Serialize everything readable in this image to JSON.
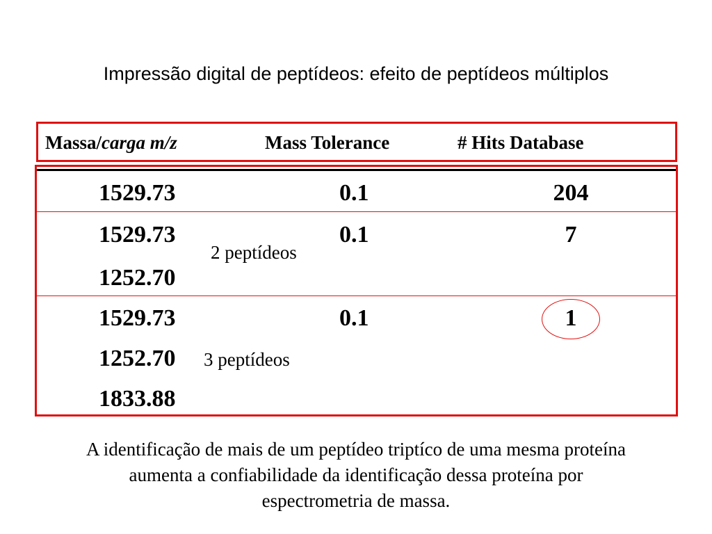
{
  "title": "Impressão digital de peptídeos: efeito de peptídeos múltiplos",
  "header": {
    "massa": "Massa/",
    "carga": "carga m/z",
    "tolerance": "Mass Tolerance",
    "hits": "# Hits Database"
  },
  "rows": [
    {
      "masses": [
        "1529.73"
      ],
      "tolerance": "0.1",
      "hits": "204",
      "note": ""
    },
    {
      "masses": [
        "1529.73",
        "1252.70"
      ],
      "tolerance": "0.1",
      "hits": "7",
      "note": "2 peptídeos"
    },
    {
      "masses": [
        "1529.73",
        "1252.70",
        "1833.88"
      ],
      "tolerance": "0.1",
      "hits": "1",
      "note": "3 peptídeos",
      "highlighted": true
    }
  ],
  "caption": {
    "line1": "A identificação de mais de um peptídeo triptíco de uma mesma proteína",
    "line2": "aumenta a confiabilidade da identificação dessa proteína por",
    "line3": "espectrometria de massa."
  },
  "colors": {
    "border": "#e01010",
    "text": "#000000"
  }
}
